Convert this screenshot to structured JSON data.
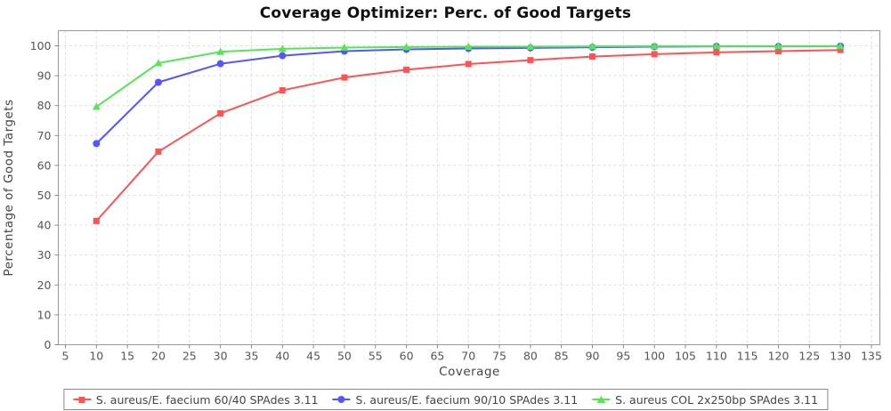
{
  "title": "Coverage Optimizer: Perc. of Good Targets",
  "chart_data": {
    "type": "line",
    "title": "Coverage Optimizer: Perc. of Good Targets",
    "xlabel": "Coverage",
    "ylabel": "Percentage of Good Targets",
    "xlim": [
      5,
      135
    ],
    "ylim": [
      0,
      100
    ],
    "x_tick_step": 5,
    "y_tick_step": 10,
    "grid": "dashed",
    "legend_position": "bottom",
    "x": [
      10,
      20,
      30,
      40,
      50,
      60,
      70,
      80,
      90,
      100,
      110,
      120,
      130
    ],
    "series": [
      {
        "name": "S. aureus/E. faecium 60/40 SPAdes 3.11",
        "marker": "square",
        "color": "#ff5252",
        "values": [
          41.4,
          64.6,
          77.4,
          85.1,
          89.4,
          92.0,
          93.9,
          95.2,
          96.4,
          97.2,
          97.8,
          98.2,
          98.6
        ]
      },
      {
        "name": "S. aureus/E. faecium 90/10 SPAdes 3.11",
        "marker": "circle",
        "color": "#5555ff",
        "values": [
          67.3,
          87.8,
          94.0,
          96.7,
          98.2,
          98.8,
          99.1,
          99.3,
          99.5,
          99.7,
          99.8,
          99.8,
          99.9
        ]
      },
      {
        "name": "S. aureus COL 2x250bp SPAdes 3.11",
        "marker": "triangle",
        "color": "#55e555",
        "values": [
          79.6,
          94.2,
          98.0,
          99.0,
          99.4,
          99.6,
          99.7,
          99.7,
          99.8,
          99.9,
          99.9,
          99.9,
          99.9
        ]
      }
    ],
    "style_colors": {
      "grid": "#dedede",
      "plot_border": "#999999",
      "tick_mark": "#888888",
      "tick_label": "#555555",
      "axis_title": "#444444",
      "chart_title": "#111111",
      "background": "#ffffff"
    }
  }
}
